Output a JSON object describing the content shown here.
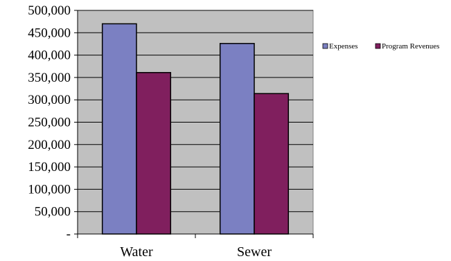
{
  "chart_data": {
    "type": "bar",
    "categories": [
      "Water",
      "Sewer"
    ],
    "series": [
      {
        "name": "Expenses",
        "values": [
          470000,
          426000
        ],
        "color": "#7b80c2"
      },
      {
        "name": "Program Revenues",
        "values": [
          361000,
          314000
        ],
        "color": "#801f5e"
      }
    ],
    "ylim": [
      0,
      500000
    ],
    "yticks": [
      0,
      50000,
      100000,
      150000,
      200000,
      250000,
      300000,
      350000,
      400000,
      450000,
      500000
    ],
    "ytick_labels": [
      "-",
      "50,000",
      "100,000",
      "150,000",
      "200,000",
      "250,000",
      "300,000",
      "350,000",
      "400,000",
      "450,000",
      "500,000"
    ],
    "grid": true,
    "plot_background": "#c0c0c0",
    "legend_position": "right"
  }
}
